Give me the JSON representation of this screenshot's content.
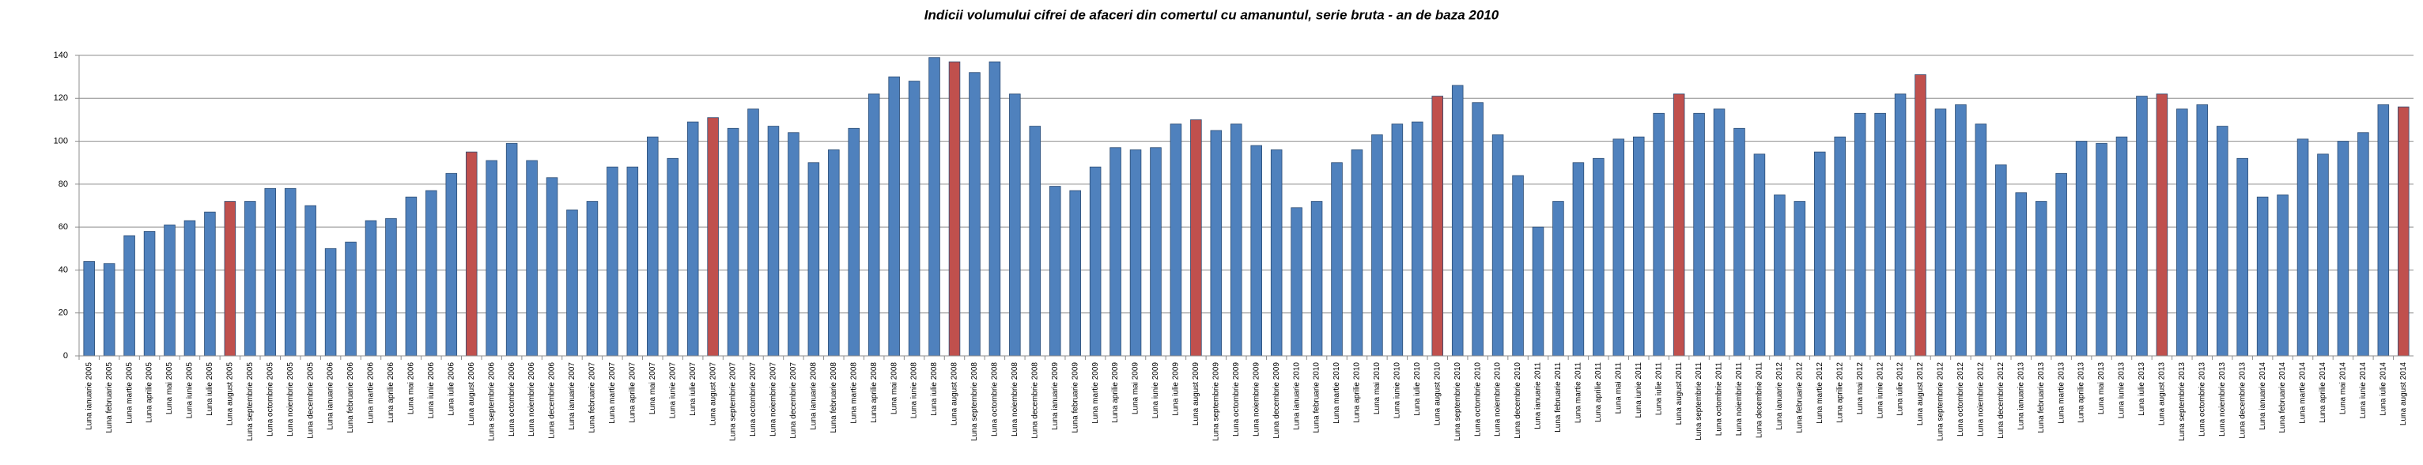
{
  "chart_data": {
    "type": "bar",
    "title": "Indicii volumului cifrei de afaceri din comertul cu amanuntul, serie bruta - an de baza 2010",
    "categories": [
      "Luna ianuarie 2005",
      "Luna februarie 2005",
      "Luna martie 2005",
      "Luna aprilie 2005",
      "Luna mai 2005",
      "Luna iunie 2005",
      "Luna iulie 2005",
      "Luna august 2005",
      "Luna septembrie 2005",
      "Luna octombrie 2005",
      "Luna noiembrie 2005",
      "Luna decembrie 2005",
      "Luna ianuarie 2006",
      "Luna februarie 2006",
      "Luna martie 2006",
      "Luna aprilie 2006",
      "Luna mai 2006",
      "Luna iunie 2006",
      "Luna iulie 2006",
      "Luna august 2006",
      "Luna septembrie 2006",
      "Luna octombrie 2006",
      "Luna noiembrie 2006",
      "Luna decembrie 2006",
      "Luna ianuarie 2007",
      "Luna februarie 2007",
      "Luna martie 2007",
      "Luna aprilie 2007",
      "Luna mai 2007",
      "Luna iunie 2007",
      "Luna iulie 2007",
      "Luna august 2007",
      "Luna septembrie 2007",
      "Luna octombrie 2007",
      "Luna noiembrie 2007",
      "Luna decembrie 2007",
      "Luna ianuarie 2008",
      "Luna februarie 2008",
      "Luna martie 2008",
      "Luna aprilie 2008",
      "Luna mai 2008",
      "Luna iunie 2008",
      "Luna iulie 2008",
      "Luna august 2008",
      "Luna septembrie 2008",
      "Luna octombrie 2008",
      "Luna noiembrie 2008",
      "Luna decembrie 2008",
      "Luna ianuarie 2009",
      "Luna februarie 2009",
      "Luna martie 2009",
      "Luna aprilie 2009",
      "Luna mai 2009",
      "Luna iunie 2009",
      "Luna iulie 2009",
      "Luna august 2009",
      "Luna septembrie 2009",
      "Luna octombrie 2009",
      "Luna noiembrie 2009",
      "Luna decembrie 2009",
      "Luna ianuarie 2010",
      "Luna februarie 2010",
      "Luna martie 2010",
      "Luna aprilie 2010",
      "Luna mai 2010",
      "Luna iunie 2010",
      "Luna iulie 2010",
      "Luna august 2010",
      "Luna septembrie 2010",
      "Luna octombrie 2010",
      "Luna noiembrie 2010",
      "Luna decembrie 2010",
      "Luna ianuarie 2011",
      "Luna februarie 2011",
      "Luna martie 2011",
      "Luna aprilie 2011",
      "Luna mai 2011",
      "Luna iunie 2011",
      "Luna iulie 2011",
      "Luna august 2011",
      "Luna septembrie 2011",
      "Luna octombrie 2011",
      "Luna noiembrie 2011",
      "Luna decembrie 2011",
      "Luna ianuarie 2012",
      "Luna februarie 2012",
      "Luna martie 2012",
      "Luna aprilie 2012",
      "Luna mai 2012",
      "Luna iunie 2012",
      "Luna iulie 2012",
      "Luna august 2012",
      "Luna septembrie 2012",
      "Luna octombrie 2012",
      "Luna noiembrie 2012",
      "Luna decembrie 2012",
      "Luna ianuarie 2013",
      "Luna februarie 2013",
      "Luna martie 2013",
      "Luna aprilie 2013",
      "Luna mai 2013",
      "Luna iunie 2013",
      "Luna iulie 2013",
      "Luna august 2013",
      "Luna septembrie 2013",
      "Luna octombrie 2013",
      "Luna noiembrie 2013",
      "Luna decembrie 2013",
      "Luna ianuarie 2014",
      "Luna februarie 2014",
      "Luna martie 2014",
      "Luna aprilie 2014",
      "Luna mai 2014",
      "Luna iunie 2014",
      "Luna iulie 2014",
      "Luna august 2014"
    ],
    "values": [
      44,
      43,
      56,
      58,
      61,
      63,
      67,
      72,
      72,
      78,
      78,
      70,
      50,
      53,
      63,
      64,
      74,
      77,
      85,
      95,
      91,
      99,
      91,
      83,
      68,
      72,
      88,
      88,
      102,
      92,
      109,
      111,
      106,
      115,
      107,
      104,
      90,
      96,
      106,
      122,
      130,
      128,
      139,
      137,
      132,
      137,
      122,
      107,
      79,
      77,
      88,
      97,
      96,
      97,
      108,
      110,
      105,
      108,
      98,
      96,
      69,
      72,
      90,
      96,
      103,
      108,
      109,
      121,
      126,
      118,
      103,
      84,
      60,
      72,
      90,
      92,
      101,
      102,
      113,
      122,
      113,
      115,
      106,
      94,
      75,
      72,
      95,
      102,
      113,
      113,
      122,
      131,
      115,
      117,
      108,
      89,
      76,
      72,
      85,
      100,
      99,
      102,
      121,
      122,
      115,
      117,
      107,
      92,
      74,
      75,
      101,
      94,
      100,
      104,
      117,
      116
    ],
    "colors": [
      "#4f81bd",
      "#4f81bd",
      "#4f81bd",
      "#4f81bd",
      "#4f81bd",
      "#4f81bd",
      "#4f81bd",
      "#c0504d",
      "#4f81bd",
      "#4f81bd",
      "#4f81bd",
      "#4f81bd",
      "#4f81bd",
      "#4f81bd",
      "#4f81bd",
      "#4f81bd",
      "#4f81bd",
      "#4f81bd",
      "#4f81bd",
      "#c0504d",
      "#4f81bd",
      "#4f81bd",
      "#4f81bd",
      "#4f81bd",
      "#4f81bd",
      "#4f81bd",
      "#4f81bd",
      "#4f81bd",
      "#4f81bd",
      "#4f81bd",
      "#4f81bd",
      "#c0504d",
      "#4f81bd",
      "#4f81bd",
      "#4f81bd",
      "#4f81bd",
      "#4f81bd",
      "#4f81bd",
      "#4f81bd",
      "#4f81bd",
      "#4f81bd",
      "#4f81bd",
      "#4f81bd",
      "#c0504d",
      "#4f81bd",
      "#4f81bd",
      "#4f81bd",
      "#4f81bd",
      "#4f81bd",
      "#4f81bd",
      "#4f81bd",
      "#4f81bd",
      "#4f81bd",
      "#4f81bd",
      "#4f81bd",
      "#c0504d",
      "#4f81bd",
      "#4f81bd",
      "#4f81bd",
      "#4f81bd",
      "#4f81bd",
      "#4f81bd",
      "#4f81bd",
      "#4f81bd",
      "#4f81bd",
      "#4f81bd",
      "#4f81bd",
      "#c0504d",
      "#4f81bd",
      "#4f81bd",
      "#4f81bd",
      "#4f81bd",
      "#4f81bd",
      "#4f81bd",
      "#4f81bd",
      "#4f81bd",
      "#4f81bd",
      "#4f81bd",
      "#4f81bd",
      "#c0504d",
      "#4f81bd",
      "#4f81bd",
      "#4f81bd",
      "#4f81bd",
      "#4f81bd",
      "#4f81bd",
      "#4f81bd",
      "#4f81bd",
      "#4f81bd",
      "#4f81bd",
      "#4f81bd",
      "#c0504d",
      "#4f81bd",
      "#4f81bd",
      "#4f81bd",
      "#4f81bd",
      "#4f81bd",
      "#4f81bd",
      "#4f81bd",
      "#4f81bd",
      "#4f81bd",
      "#4f81bd",
      "#4f81bd",
      "#c0504d",
      "#4f81bd",
      "#4f81bd",
      "#4f81bd",
      "#4f81bd",
      "#4f81bd",
      "#4f81bd",
      "#4f81bd",
      "#4f81bd",
      "#4f81bd",
      "#4f81bd",
      "#4f81bd",
      "#c0504d"
    ],
    "ylim": [
      0,
      140
    ],
    "yticks": [
      0,
      20,
      40,
      60,
      80,
      100,
      120,
      140
    ],
    "grid": true
  }
}
